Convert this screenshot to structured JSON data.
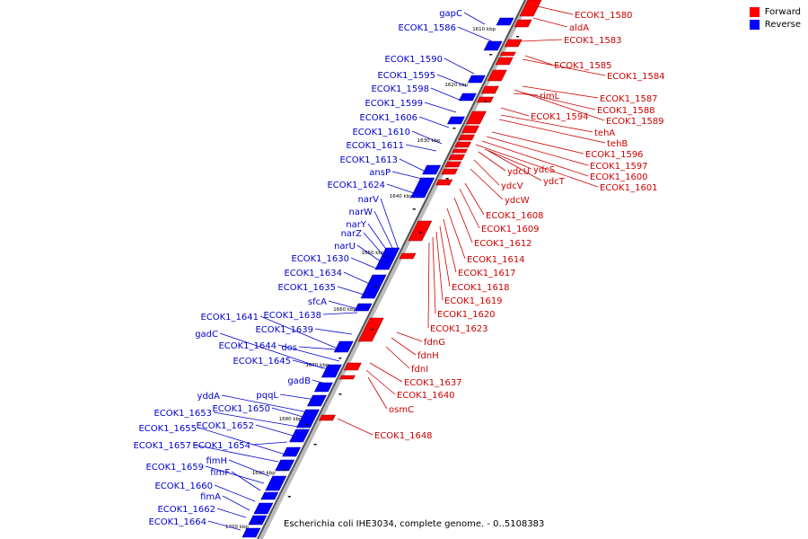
{
  "legend": {
    "forward_label": "Forward",
    "reverse_label": "Reverse",
    "forward_color": "#ff0000",
    "reverse_color": "#0000ff"
  },
  "caption": "Escherichia coli IHE3034, complete genome. - 0..5108383",
  "colors": {
    "forward_label": "#cc0000",
    "reverse_label": "#0000cc",
    "axis": "#888888"
  },
  "scale_ticks": [
    "1610 kbp",
    "1620 kbp",
    "1630 kbp",
    "1640 kbp",
    "1650 kbp",
    "1660 kbp",
    "1670 kbp",
    "1680 kbp",
    "1690 kbp",
    "1700 kbp"
  ],
  "forward_labels": [
    "ECOK1_1580",
    "aldA",
    "ECOK1_1583",
    "ECOK1_1585",
    "ECOK1_1584",
    "rimL",
    "ECOK1_1587",
    "ECOK1_1588",
    "ECOK1_1594",
    "ECOK1_1589",
    "tehA",
    "tehB",
    "ECOK1_1596",
    "ydcS",
    "ECOK1_1597",
    "ydcU",
    "ECOK1_1600",
    "ydcT",
    "ydcV",
    "ECOK1_1601",
    "ydcW",
    "ECOK1_1608",
    "ECOK1_1609",
    "ECOK1_1612",
    "ECOK1_1614",
    "ECOK1_1617",
    "ECOK1_1618",
    "ECOK1_1619",
    "ECOK1_1620",
    "ECOK1_1623",
    "fdnG",
    "fdnH",
    "fdnI",
    "ECOK1_1637",
    "ECOK1_1640",
    "osmC",
    "ECOK1_1648"
  ],
  "reverse_labels": [
    "gapC",
    "ECOK1_1586",
    "ECOK1_1590",
    "ECOK1_1595",
    "ECOK1_1598",
    "ECOK1_1599",
    "ECOK1_1606",
    "ECOK1_1610",
    "ECOK1_1611",
    "ECOK1_1613",
    "ansP",
    "ECOK1_1624",
    "narV",
    "narW",
    "narY",
    "narZ",
    "narU",
    "ECOK1_1630",
    "ECOK1_1634",
    "ECOK1_1635",
    "sfcA",
    "ECOK1_1641",
    "ECOK1_1638",
    "gadC",
    "ECOK1_1639",
    "ECOK1_1644",
    "dos",
    "ECOK1_1645",
    "gadB",
    "pqqL",
    "yddA",
    "ECOK1_1650",
    "ECOK1_1653",
    "ECOK1_1652",
    "ECOK1_1655",
    "ECOK1_1657",
    "ECOK1_1654",
    "fimH",
    "ECOK1_1659",
    "fimF",
    "ECOK1_1660",
    "fimA",
    "ECOK1_1662",
    "ECOK1_1664"
  ]
}
